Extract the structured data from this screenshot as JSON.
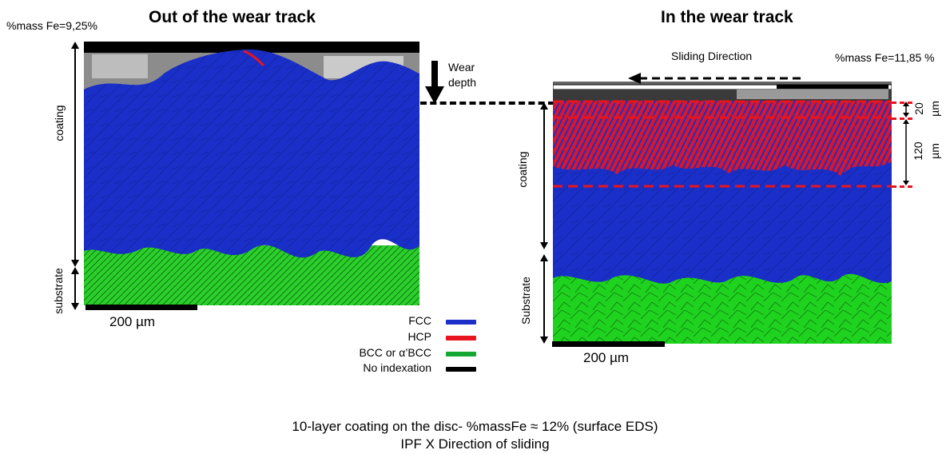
{
  "left_panel": {
    "title": "Out of the wear track",
    "fe_label": "%mass Fe=9,25%",
    "coating_label": "coating",
    "substrate_label": "substrate",
    "scale_label": "200 µm"
  },
  "right_panel": {
    "title": "In the wear track",
    "fe_label": "%mass Fe=11,85 %",
    "sliding_label": "Sliding Direction",
    "coating_label": "coating",
    "substrate_label": "Substrate",
    "scale_label": "200 µm",
    "dim_top_value": "20",
    "dim_top_unit": "µm",
    "dim_bottom_value": "120",
    "dim_bottom_unit": "µm"
  },
  "wear_depth": {
    "line1": "Wear",
    "line2": "depth"
  },
  "legend": {
    "items": [
      {
        "label": "FCC",
        "color": "#1a2fc8"
      },
      {
        "label": "HCP",
        "color": "#e8141e"
      },
      {
        "label": "BCC or α’BCC",
        "color": "#14a832"
      },
      {
        "label": "No indexation",
        "color": "#000000"
      }
    ]
  },
  "caption": {
    "line1": "10-layer coating on the disc- %massFe ≈ 12% (surface EDS)",
    "line2": "IPF X Direction of sliding"
  },
  "colors": {
    "fcc": "#1a2fc8",
    "hcp": "#e8141e",
    "bcc": "#1fd21f",
    "dashed_red": "#e8141e"
  }
}
